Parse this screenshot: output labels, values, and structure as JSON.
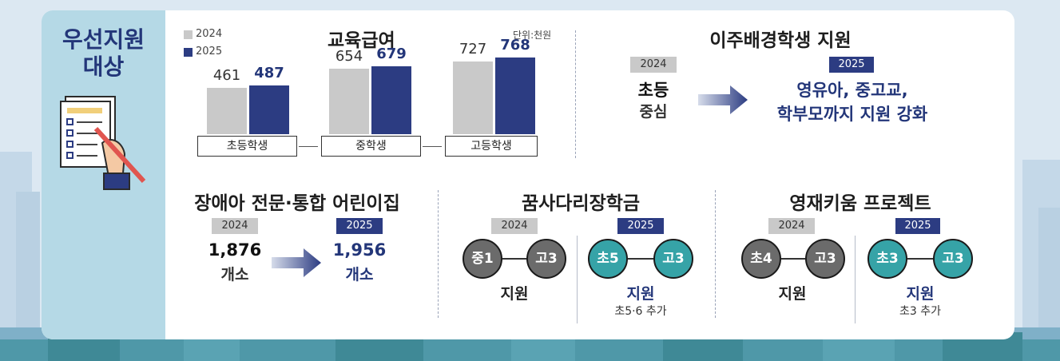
{
  "left_title": {
    "line1": "우선지원",
    "line2": "대상"
  },
  "education_benefit": {
    "title": "교육급여",
    "unit": "단위:천원",
    "legend": [
      "2024",
      "2025"
    ],
    "categories": [
      "초등학생",
      "중학생",
      "고등학생"
    ],
    "values_2024": [
      461,
      654,
      727
    ],
    "values_2025": [
      487,
      679,
      768
    ],
    "colors": {
      "y2024": "#c9c9c9",
      "y2025": "#2c3c82"
    }
  },
  "chart_data": {
    "type": "bar",
    "categories": [
      "초등학생",
      "중학생",
      "고등학생"
    ],
    "series": [
      {
        "name": "2024",
        "values": [
          461,
          654,
          727
        ]
      },
      {
        "name": "2025",
        "values": [
          487,
          679,
          768
        ]
      }
    ],
    "title": "교육급여",
    "unit": "단위:천원",
    "ylim": [
      0,
      800
    ],
    "legend_position": "top-left"
  },
  "migrant": {
    "title": "이주배경학생 지원",
    "tag_2024": "2024",
    "tag_2025": "2025",
    "text_2024_line1": "초등",
    "text_2024_line2": "중심",
    "text_2025_line1": "영유아, 중고교,",
    "text_2025_line2": "학부모까지 지원 강화"
  },
  "daycare": {
    "title": "장애아 전문·통합 어린이집",
    "tag_2024": "2024",
    "tag_2025": "2025",
    "count_2024": "1,876",
    "count_2025": "1,956",
    "unit": "개소"
  },
  "dream": {
    "title": "꿈사다리장학금",
    "tag_2024": "2024",
    "tag_2025": "2025",
    "from_2024": "중1",
    "to_2024": "고3",
    "from_2025": "초5",
    "to_2025": "고3",
    "support": "지원",
    "note_2025": "초5·6 추가"
  },
  "gifted": {
    "title": "영재키움 프로젝트",
    "tag_2024": "2024",
    "tag_2025": "2025",
    "from_2024": "초4",
    "to_2024": "고3",
    "from_2025": "초3",
    "to_2025": "고3",
    "support": "지원",
    "note_2025": "초3 추가"
  },
  "colors": {
    "navy": "#2c3c82",
    "teal": "#36a3a7",
    "gray": "#6b6b6b",
    "panel": "#b5d9e6"
  }
}
